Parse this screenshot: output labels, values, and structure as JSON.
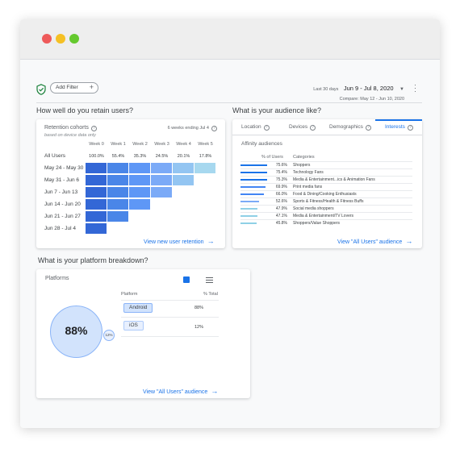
{
  "filter": {
    "add_filter_label": "Add Filter",
    "date_label": "Last 30 days",
    "date_range": "Jun 9 - Jul 8, 2020",
    "compare_text": "Compare: May 12 - Jun 10, 2020"
  },
  "retention": {
    "section_title": "How well do you retain users?",
    "card_title": "Retention cohorts",
    "subtitle": "based on device data only",
    "weeks_info": "6 weeks ending Jul 4",
    "weeks": [
      "Week 0",
      "Week 1",
      "Week 2",
      "Week 3",
      "Week 4",
      "Week 5"
    ],
    "all_users_label": "All Users",
    "all_users_pct": [
      "100.0%",
      "55.4%",
      "35.3%",
      "24.5%",
      "20.1%",
      "17.8%"
    ],
    "cohorts": [
      "May 24 - May 30",
      "May 31 - Jun 6",
      "Jun 7 - Jun 13",
      "Jun 14 - Jun 20",
      "Jun 21 - Jun 27",
      "Jun 28 - Jul 4"
    ],
    "link": "View new user retention"
  },
  "audience": {
    "section_title": "What is your audience like?",
    "tabs": [
      "Location",
      "Devices",
      "Demographics",
      "Interests"
    ],
    "affinity_title": "Affinity audiences",
    "col_pct": "% of Users",
    "col_cat": "Categories",
    "rows": [
      {
        "pct": "75.6%",
        "name": "Shoppers",
        "value": 75.6
      },
      {
        "pct": "75.4%",
        "name": "Technology Fans",
        "value": 75.4
      },
      {
        "pct": "75.3%",
        "name": "Media & Entertainment...ics & Animation Fans",
        "value": 75.3
      },
      {
        "pct": "69.9%",
        "name": "Print media fans",
        "value": 69.9
      },
      {
        "pct": "66.0%",
        "name": "Food & Dining/Cooking Enthusiasts",
        "value": 66.0
      },
      {
        "pct": "52.6%",
        "name": "Sports & Fitness/Health & Fitness Buffs",
        "value": 52.6
      },
      {
        "pct": "47.9%",
        "name": "Social media shoppers",
        "value": 47.9
      },
      {
        "pct": "47.1%",
        "name": "Media & Entertainment/TV Lovers",
        "value": 47.1
      },
      {
        "pct": "45.8%",
        "name": "Shoppers/Value Shoppers",
        "value": 45.8
      }
    ],
    "link": "View \"All Users\" audience"
  },
  "platform": {
    "section_title": "What is your platform breakdown?",
    "card_title": "Platforms",
    "col_platform": "Platform",
    "col_total": "% Total",
    "big_pct": "88%",
    "small_pct": "12%",
    "rows": [
      {
        "name": "Android",
        "pct": "88%"
      },
      {
        "name": "iOS",
        "pct": "12%"
      }
    ],
    "link": "View \"All Users\" audience"
  },
  "colors": {
    "accent": "#1a73e8"
  }
}
